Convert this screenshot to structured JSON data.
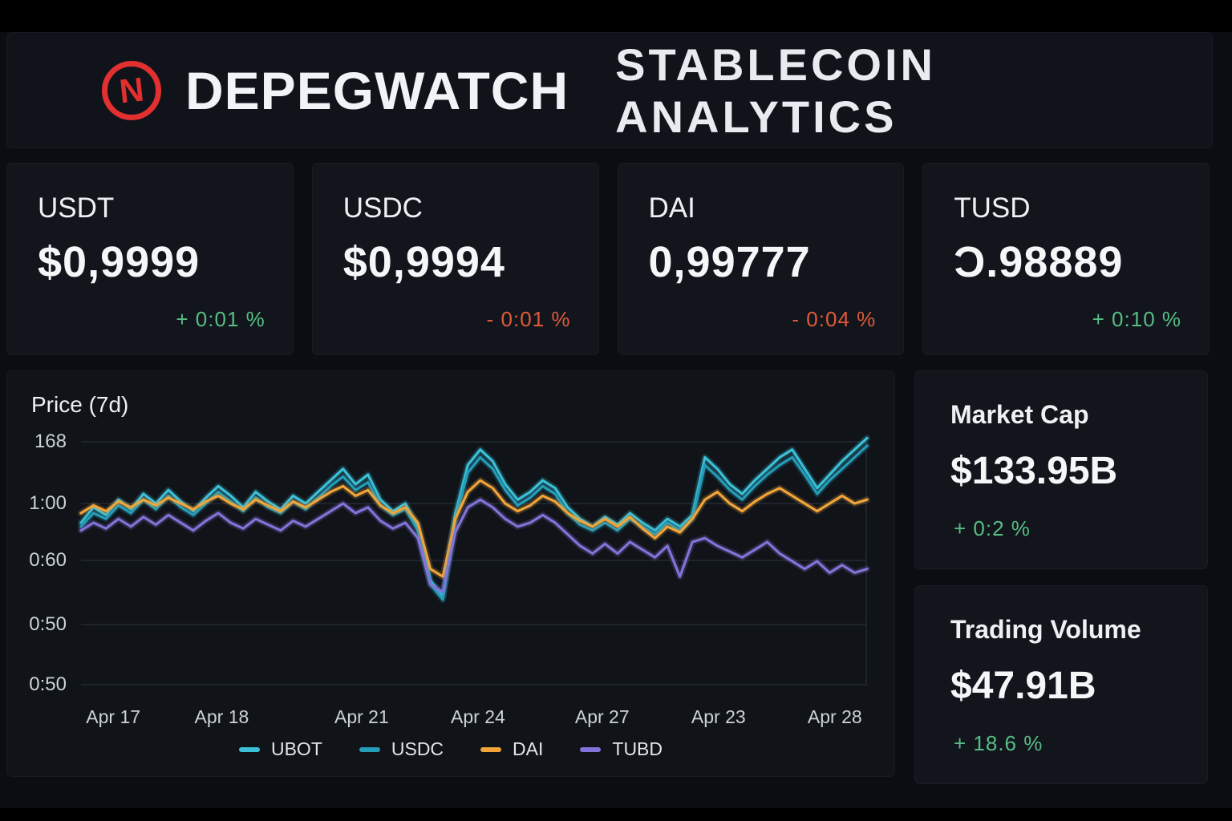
{
  "header": {
    "logo_letter": "N",
    "brand": "DEPEGWATCH",
    "subtitle": "STABLECOIN ANALYTICS"
  },
  "colors": {
    "positive": "#57bd84",
    "negative": "#e0593a",
    "logo_red": "#e22f2f",
    "background": "#0a0d12",
    "card": "#12161c"
  },
  "stat_cards": [
    {
      "name": "USDT",
      "price": "$0,9999",
      "change": "+ 0:01 %",
      "direction": "up"
    },
    {
      "name": "USDC",
      "price": "$0,9994",
      "change": "- 0:01 %",
      "direction": "down"
    },
    {
      "name": "DAI",
      "price": "0,99777",
      "change": "- 0:04 %",
      "direction": "down"
    },
    {
      "name": "TUSD",
      "price": "Ɔ.98889",
      "change": "+ 0:10 %",
      "direction": "up"
    }
  ],
  "side_cards": [
    {
      "title": "Market Cap",
      "value": "$133.95B",
      "change": "+ 0:2 %",
      "direction": "up"
    },
    {
      "title": "Trading Volume",
      "value": "$47.91B",
      "change": "+ 18.6 %",
      "direction": "up"
    }
  ],
  "chart_data": {
    "type": "line",
    "title": "Price (7d)",
    "xlabel": "",
    "ylabel": "",
    "grid": true,
    "legend_position": "bottom",
    "y_ticks": [
      "168",
      "1:00",
      "0:60",
      "0:50",
      "0:50"
    ],
    "y_tick_pos": [
      10,
      87,
      158,
      238,
      313
    ],
    "x_ticks": [
      "Apr 17",
      "Apr 18",
      "Apr 21",
      "Apr 24",
      "Apr 27",
      "Apr 23",
      "Apr 28"
    ],
    "x_tick_pos": [
      4.1,
      17.9,
      35.7,
      50.5,
      66.3,
      81.1,
      95.9
    ],
    "baseline_value": 1.0,
    "value_range": [
      0.35,
      1.4
    ],
    "legend": [
      {
        "label": "UBOT",
        "color": "#3cc0d8"
      },
      {
        "label": "USDC",
        "color": "#259cb8"
      },
      {
        "label": "DAI",
        "color": "#f0a43a"
      },
      {
        "label": "TUBD",
        "color": "#8273d8"
      }
    ],
    "series": [
      {
        "name": "UBOT",
        "color": "#3cc0d8",
        "values": [
          0.9,
          0.98,
          0.94,
          1.02,
          0.97,
          1.05,
          1.0,
          1.07,
          1.01,
          0.96,
          1.03,
          1.09,
          1.04,
          0.98,
          1.06,
          1.01,
          0.97,
          1.04,
          1.0,
          1.06,
          1.12,
          1.18,
          1.1,
          1.15,
          1.02,
          0.96,
          1.0,
          0.88,
          0.6,
          0.52,
          0.95,
          1.2,
          1.28,
          1.22,
          1.1,
          1.02,
          1.06,
          1.12,
          1.08,
          0.98,
          0.92,
          0.88,
          0.93,
          0.89,
          0.95,
          0.9,
          0.86,
          0.92,
          0.88,
          0.94,
          1.24,
          1.18,
          1.1,
          1.05,
          1.12,
          1.18,
          1.24,
          1.28,
          1.18,
          1.08,
          1.15,
          1.22,
          1.28,
          1.34
        ]
      },
      {
        "name": "USDC",
        "color": "#259cb8",
        "values": [
          0.88,
          0.95,
          0.92,
          0.99,
          0.95,
          1.02,
          0.97,
          1.04,
          0.98,
          0.94,
          1.0,
          1.06,
          1.01,
          0.96,
          1.03,
          0.98,
          0.95,
          1.01,
          0.97,
          1.03,
          1.09,
          1.14,
          1.07,
          1.11,
          0.99,
          0.94,
          0.97,
          0.86,
          0.58,
          0.5,
          0.92,
          1.16,
          1.24,
          1.18,
          1.07,
          0.99,
          1.03,
          1.09,
          1.05,
          0.95,
          0.89,
          0.86,
          0.9,
          0.86,
          0.92,
          0.88,
          0.84,
          0.9,
          0.86,
          0.92,
          1.2,
          1.14,
          1.07,
          1.02,
          1.09,
          1.15,
          1.2,
          1.24,
          1.15,
          1.05,
          1.12,
          1.18,
          1.24,
          1.3
        ]
      },
      {
        "name": "DAI",
        "color": "#f0a43a",
        "values": [
          0.95,
          0.99,
          0.96,
          1.01,
          0.98,
          1.02,
          0.99,
          1.03,
          1.0,
          0.97,
          1.01,
          1.04,
          1.0,
          0.97,
          1.02,
          0.99,
          0.96,
          1.01,
          0.98,
          1.02,
          1.06,
          1.09,
          1.04,
          1.07,
          0.99,
          0.95,
          0.98,
          0.9,
          0.66,
          0.62,
          0.92,
          1.06,
          1.12,
          1.08,
          1.0,
          0.96,
          0.99,
          1.04,
          1.01,
          0.95,
          0.91,
          0.88,
          0.92,
          0.88,
          0.93,
          0.87,
          0.82,
          0.88,
          0.85,
          0.92,
          1.02,
          1.06,
          1.0,
          0.96,
          1.01,
          1.05,
          1.08,
          1.04,
          1.0,
          0.96,
          1.0,
          1.04,
          1.0,
          1.02
        ]
      },
      {
        "name": "TUBD",
        "color": "#8273d8",
        "values": [
          0.86,
          0.9,
          0.87,
          0.92,
          0.88,
          0.93,
          0.89,
          0.94,
          0.9,
          0.86,
          0.91,
          0.95,
          0.9,
          0.87,
          0.92,
          0.89,
          0.86,
          0.91,
          0.88,
          0.92,
          0.96,
          1.0,
          0.95,
          0.98,
          0.91,
          0.87,
          0.9,
          0.82,
          0.58,
          0.54,
          0.85,
          0.98,
          1.02,
          0.98,
          0.92,
          0.88,
          0.9,
          0.94,
          0.9,
          0.84,
          0.78,
          0.74,
          0.79,
          0.74,
          0.8,
          0.76,
          0.72,
          0.78,
          0.62,
          0.8,
          0.82,
          0.78,
          0.75,
          0.72,
          0.76,
          0.8,
          0.74,
          0.7,
          0.66,
          0.7,
          0.64,
          0.68,
          0.64,
          0.66
        ]
      }
    ]
  }
}
